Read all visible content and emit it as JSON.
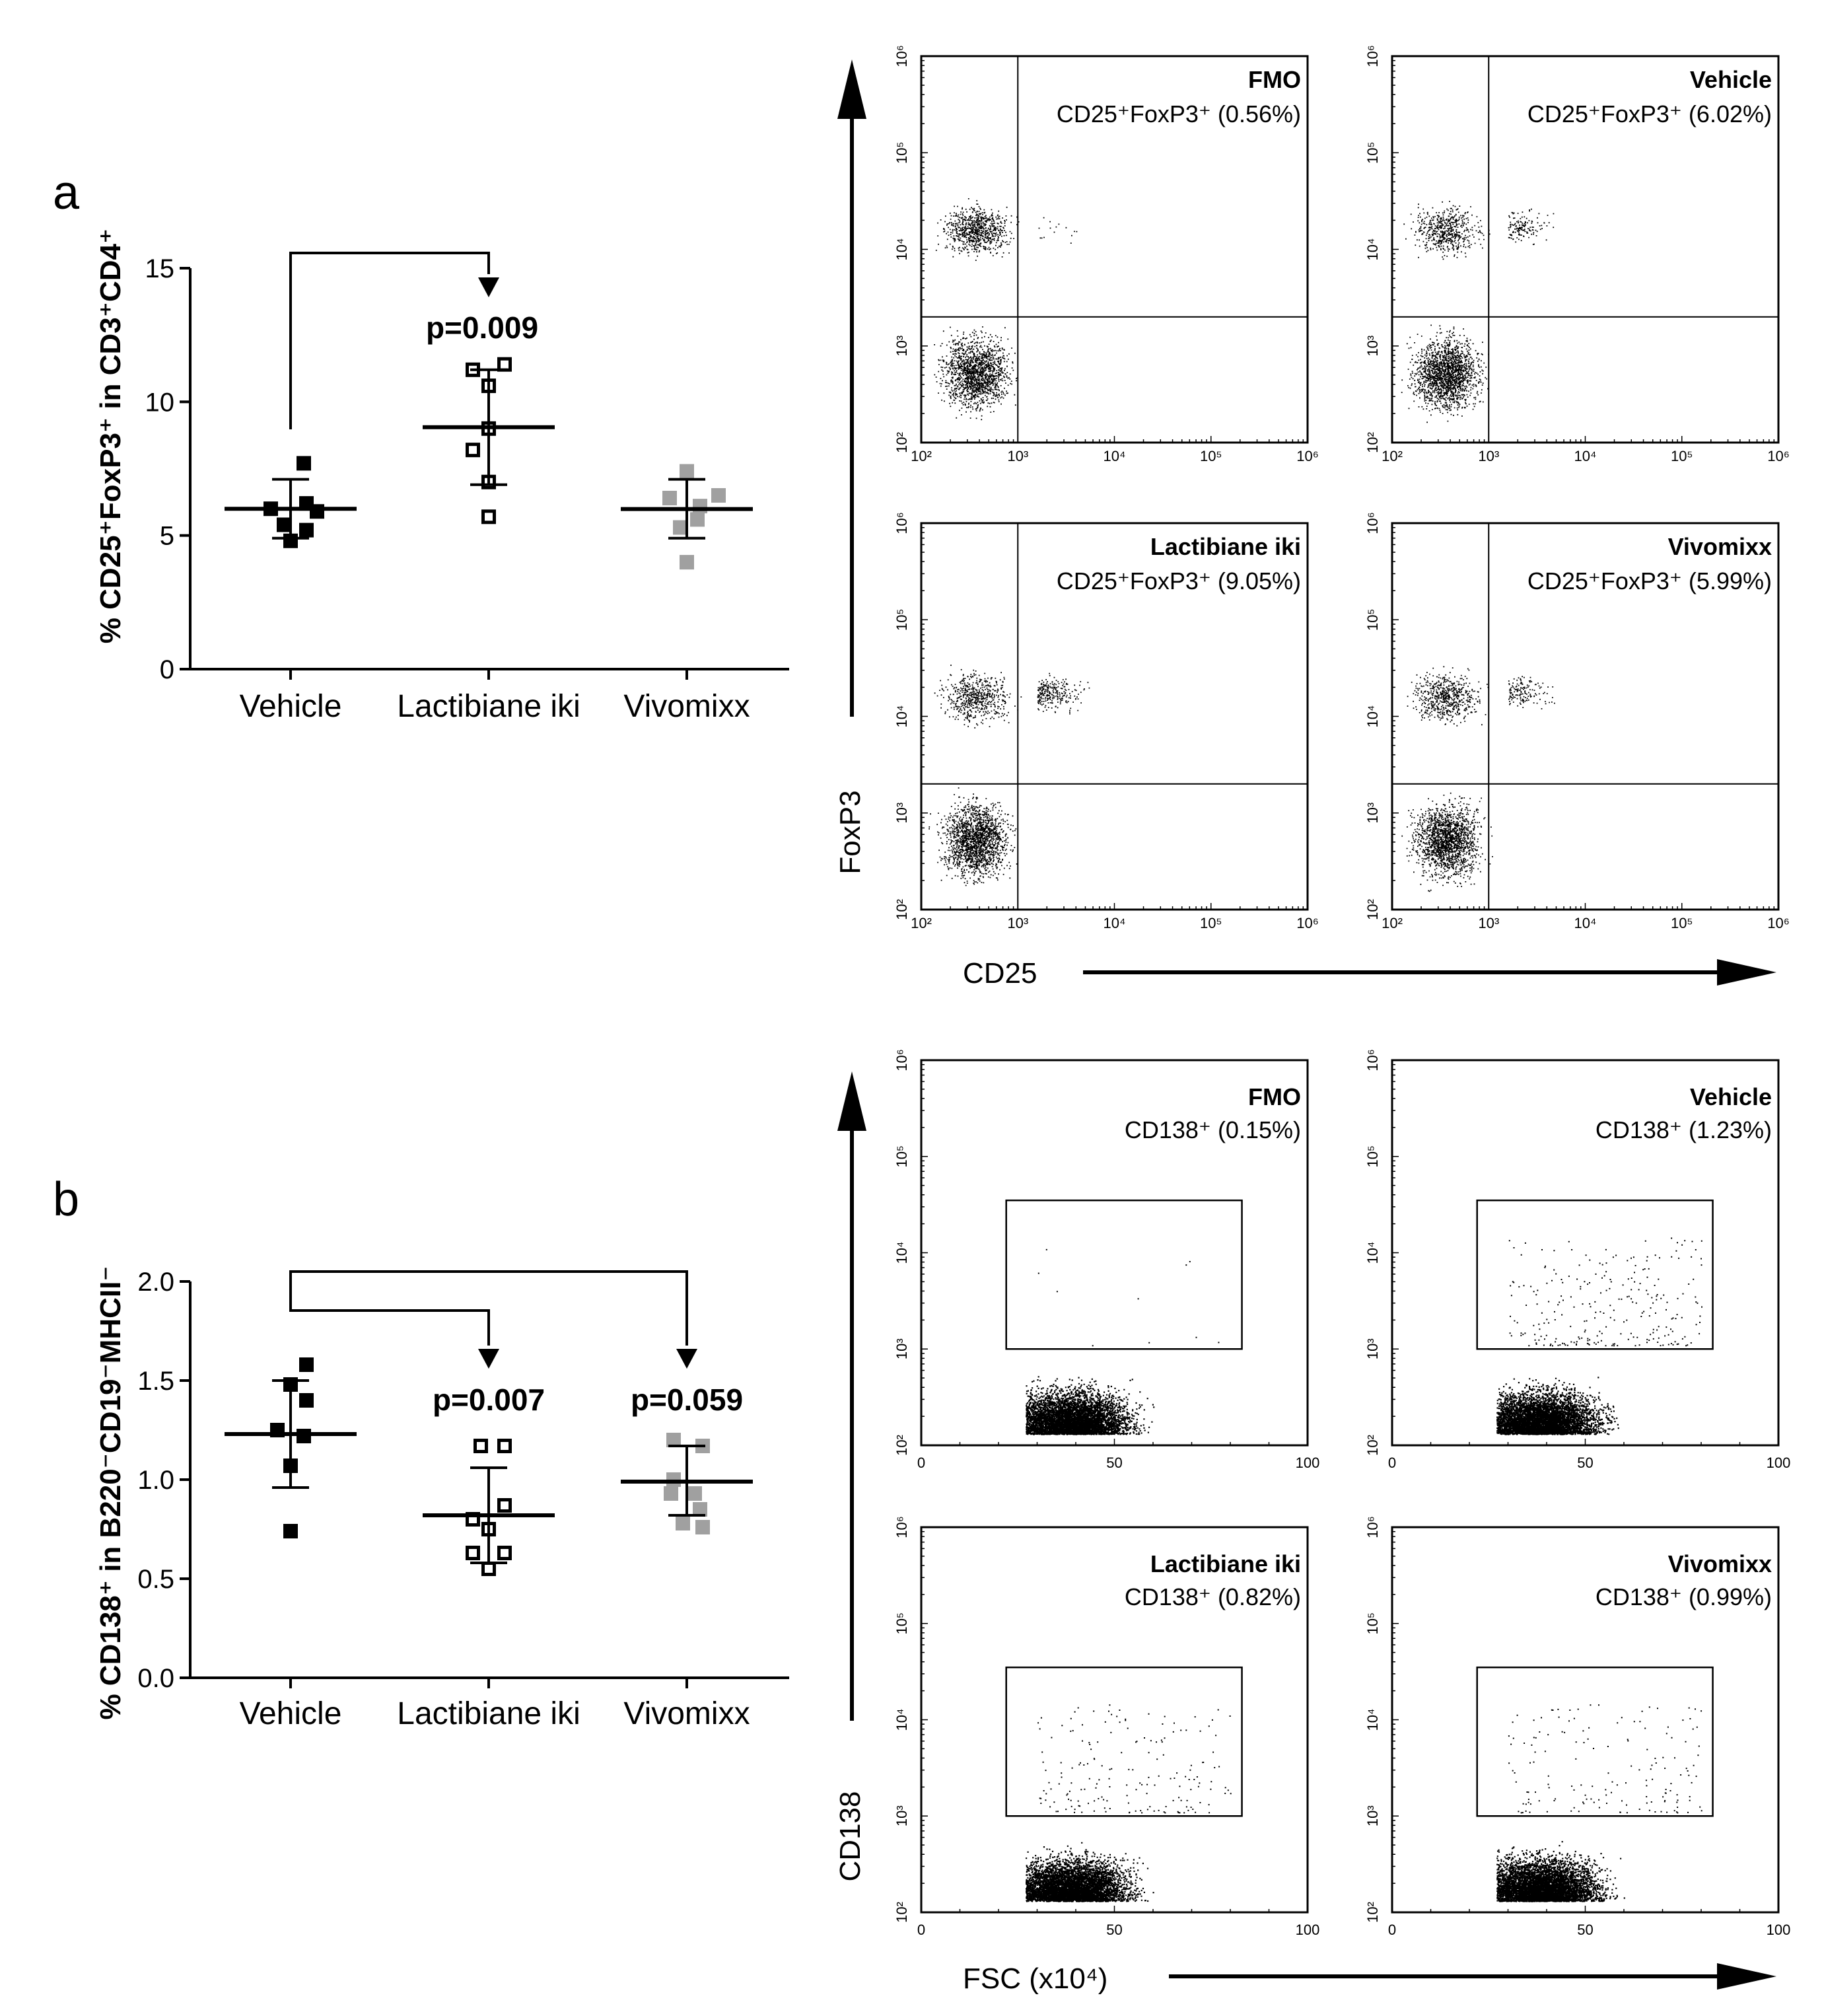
{
  "panel_labels": {
    "a": "a",
    "b": "b"
  },
  "scatter_a": {
    "ylabel": "% CD25⁺FoxP3⁺ in CD3⁺CD4⁺",
    "comparison": "p=0.009"
  },
  "scatter_b": {
    "ylabel": "% CD138⁺ in B220⁻CD19⁻MHCII⁻",
    "comparison_1": "p=0.007",
    "comparison_2": "p=0.059"
  },
  "flow_a": {
    "y_axis_label": "FoxP3",
    "x_axis_label": "CD25",
    "tick_labels": [
      "10²",
      "10³",
      "10⁴",
      "10⁵",
      "10⁶"
    ],
    "plots": [
      {
        "title": "FMO",
        "stat": "CD25⁺FoxP3⁺ (0.56%)"
      },
      {
        "title": "Vehicle",
        "stat": "CD25⁺FoxP3⁺ (6.02%)"
      },
      {
        "title": "Lactibiane iki",
        "stat": "CD25⁺FoxP3⁺ (9.05%)"
      },
      {
        "title": "Vivomixx",
        "stat": "CD25⁺FoxP3⁺ (5.99%)"
      }
    ]
  },
  "flow_b": {
    "y_axis_label": "CD138",
    "x_axis_label": "FSC (x10⁴)",
    "y_tick_labels": [
      "10²",
      "10³",
      "10⁴",
      "10⁵",
      "10⁶"
    ],
    "x_tick_labels": [
      "0",
      "50",
      "100"
    ],
    "plots": [
      {
        "title": "FMO",
        "stat": "CD138⁺ (0.15%)"
      },
      {
        "title": "Vehicle",
        "stat": "CD138⁺ (1.23%)"
      },
      {
        "title": "Lactibiane iki",
        "stat": "CD138⁺ (0.82%)"
      },
      {
        "title": "Vivomixx",
        "stat": "CD138⁺ (0.99%)"
      }
    ]
  },
  "chart_data": [
    {
      "type": "scatter",
      "id": "a",
      "ylabel": "% CD25⁺FoxP3⁺ in CD3⁺CD4⁺",
      "categories": [
        "Vehicle",
        "Lactibiane iki",
        "Vivomixx"
      ],
      "ylim": [
        0,
        15
      ],
      "yticks": [
        0,
        5,
        10,
        15
      ],
      "series": [
        {
          "name": "Vehicle",
          "color": "#000000",
          "marker": "filled-square",
          "points": [
            [
              -0.15,
              6.0
            ],
            [
              -0.05,
              5.4
            ],
            [
              0.1,
              7.7
            ],
            [
              0.12,
              6.2
            ],
            [
              0.12,
              5.2
            ],
            [
              0.2,
              5.9
            ],
            [
              0.0,
              4.8
            ]
          ],
          "mean": 6.0,
          "sd_low": 4.9,
          "sd_high": 7.1
        },
        {
          "name": "Lactibiane iki",
          "color": "#000000",
          "marker": "open-square",
          "points": [
            [
              -0.12,
              11.2
            ],
            [
              0.12,
              11.4
            ],
            [
              0.0,
              10.6
            ],
            [
              -0.12,
              8.2
            ],
            [
              0.0,
              9.0
            ],
            [
              0.0,
              7.0
            ],
            [
              0.0,
              5.7
            ]
          ],
          "mean": 9.05,
          "sd_low": 6.9,
          "sd_high": 11.2
        },
        {
          "name": "Vivomixx",
          "color": "#a0a0a0",
          "marker": "filled-square",
          "points": [
            [
              0.0,
              7.4
            ],
            [
              -0.13,
              6.4
            ],
            [
              0.1,
              6.1
            ],
            [
              0.24,
              6.5
            ],
            [
              -0.05,
              5.3
            ],
            [
              0.08,
              5.6
            ],
            [
              0.0,
              4.0
            ]
          ],
          "mean": 5.99,
          "sd_low": 4.9,
          "sd_high": 7.1
        }
      ],
      "comparisons": [
        {
          "from": "Vehicle",
          "to": "Lactibiane iki",
          "label": "p=0.009"
        }
      ]
    },
    {
      "type": "scatter",
      "id": "b",
      "ylabel": "% CD138⁺ in B220⁻CD19⁻MHCII⁻",
      "categories": [
        "Vehicle",
        "Lactibiane iki",
        "Vivomixx"
      ],
      "ylim": [
        0,
        2.0
      ],
      "yticks": [
        0.0,
        0.5,
        1.0,
        1.5,
        2.0
      ],
      "ytick_labels": [
        "0.0",
        "0.5",
        "1.0",
        "1.5",
        "2.0"
      ],
      "series": [
        {
          "name": "Vehicle",
          "color": "#000000",
          "marker": "filled-square",
          "points": [
            [
              0.12,
              1.58
            ],
            [
              0.0,
              1.48
            ],
            [
              0.12,
              1.4
            ],
            [
              -0.1,
              1.25
            ],
            [
              0.1,
              1.22
            ],
            [
              0.0,
              1.07
            ],
            [
              0.0,
              0.74
            ]
          ],
          "mean": 1.23,
          "sd_low": 0.96,
          "sd_high": 1.5
        },
        {
          "name": "Lactibiane iki",
          "color": "#000000",
          "marker": "open-square",
          "points": [
            [
              -0.06,
              1.17
            ],
            [
              0.12,
              1.17
            ],
            [
              0.12,
              0.87
            ],
            [
              -0.12,
              0.8
            ],
            [
              0.0,
              0.75
            ],
            [
              -0.12,
              0.63
            ],
            [
              0.12,
              0.63
            ],
            [
              0.0,
              0.55
            ]
          ],
          "mean": 0.82,
          "sd_low": 0.58,
          "sd_high": 1.06
        },
        {
          "name": "Vivomixx",
          "color": "#a0a0a0",
          "marker": "filled-square",
          "points": [
            [
              -0.1,
              1.2
            ],
            [
              0.12,
              1.17
            ],
            [
              -0.1,
              1.0
            ],
            [
              0.06,
              0.93
            ],
            [
              -0.12,
              0.93
            ],
            [
              0.1,
              0.85
            ],
            [
              -0.03,
              0.78
            ],
            [
              0.12,
              0.76
            ]
          ],
          "mean": 0.99,
          "sd_low": 0.82,
          "sd_high": 1.17
        }
      ],
      "comparisons": [
        {
          "from": "Vehicle",
          "to": "Lactibiane iki",
          "label": "p=0.007"
        },
        {
          "from": "Vehicle",
          "to": "Vivomixx",
          "label": "p=0.059"
        }
      ]
    },
    {
      "type": "scatter",
      "id": "flow-foxp3",
      "xlabel": "CD25",
      "ylabel": "FoxP3",
      "xscale": "log",
      "yscale": "log",
      "xlim": [
        100,
        1000000
      ],
      "ylim": [
        100,
        1000000
      ],
      "gate": {
        "x": 1000,
        "y": 2000
      },
      "panels": [
        {
          "name": "FMO",
          "value_pct": 0.56
        },
        {
          "name": "Vehicle",
          "value_pct": 6.02
        },
        {
          "name": "Lactibiane iki",
          "value_pct": 9.05
        },
        {
          "name": "Vivomixx",
          "value_pct": 5.99
        }
      ]
    },
    {
      "type": "scatter",
      "id": "flow-cd138",
      "xlabel": "FSC (x10⁴)",
      "ylabel": "CD138",
      "xscale": "linear",
      "yscale": "log",
      "xlim": [
        0,
        100
      ],
      "ylim": [
        100,
        1000000
      ],
      "gate": {
        "x_min": 22,
        "x_max": 83,
        "y_min": 1000,
        "y_max": 35000
      },
      "panels": [
        {
          "name": "FMO",
          "value_pct": 0.15
        },
        {
          "name": "Vehicle",
          "value_pct": 1.23
        },
        {
          "name": "Lactibiane iki",
          "value_pct": 0.82
        },
        {
          "name": "Vivomixx",
          "value_pct": 0.99
        }
      ]
    }
  ]
}
